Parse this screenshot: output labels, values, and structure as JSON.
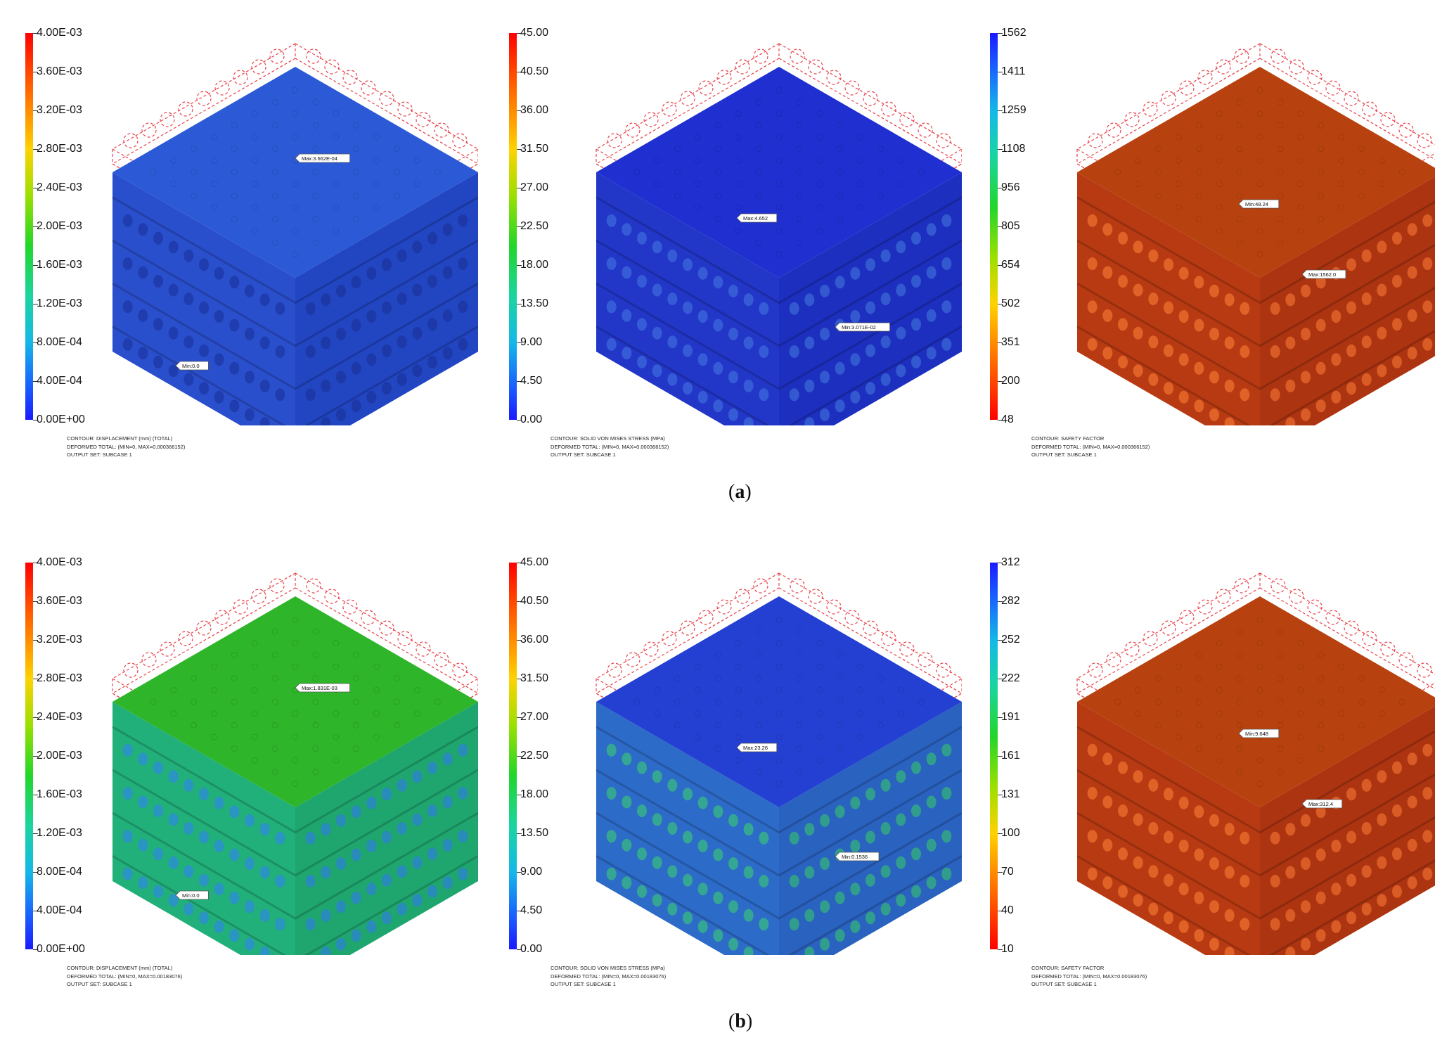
{
  "captions": {
    "a": "a",
    "b": "b"
  },
  "rows": [
    {
      "panels": [
        {
          "kind": "displacement",
          "colormap": "rainbow",
          "ticks": [
            "4.00E-03",
            "3.60E-03",
            "3.20E-03",
            "2.80E-03",
            "2.40E-03",
            "2.00E-03",
            "1.60E-03",
            "1.20E-03",
            "8.00E-04",
            "4.00E-04",
            "0.00E+00"
          ],
          "colors": {
            "top": "#2c5ad6",
            "left": "#2a4fcc",
            "right": "#2245c2",
            "dimples_left": "#1d3aa8",
            "dimples_right": "#1b37a2"
          },
          "max_label": "Max:3.662E-04",
          "min_label": "Min:0.0",
          "footer": [
            "CONTOUR: DISPLACEMENT (mm) (TOTAL)",
            "DEFORMED TOTAL: (MIN=0, MAX=0.000366152)",
            "OUTPUT SET: SUBCASE 1"
          ]
        },
        {
          "kind": "stress",
          "colormap": "rainbow",
          "ticks": [
            "45.00",
            "40.50",
            "36.00",
            "31.50",
            "27.00",
            "22.50",
            "18.00",
            "13.50",
            "9.00",
            "4.50",
            "0.00"
          ],
          "colors": {
            "top": "#1f2fd0",
            "left": "#2236c8",
            "right": "#1d2fbf",
            "dimples_left": "#3a62d8",
            "dimples_right": "#3760d4"
          },
          "max_label": "Max:4.652",
          "min_label": "Min:3.071E-02",
          "footer": [
            "CONTOUR: SOLID VON MISES STRESS (MPa)",
            "DEFORMED TOTAL: (MIN=0, MAX=0.000366152)",
            "OUTPUT SET: SUBCASE 1"
          ]
        },
        {
          "kind": "safety",
          "colormap": "reverse",
          "ticks": [
            "1562",
            "1411",
            "1259",
            "1108",
            "956",
            "805",
            "654",
            "502",
            "351",
            "200",
            "48"
          ],
          "colors": {
            "top": "#b8420f",
            "left": "#b83a12",
            "right": "#ad3410",
            "dimples_left": "#e86a2a",
            "dimples_right": "#e0642a"
          },
          "max_label": "Min:48.24",
          "min_label": "Max:1562.0",
          "footer": [
            "CONTOUR: SAFETY FACTOR",
            "DEFORMED TOTAL: (MIN=0, MAX=0.000366152)",
            "OUTPUT SET: SUBCASE 1"
          ]
        }
      ]
    },
    {
      "panels": [
        {
          "kind": "displacement",
          "colormap": "rainbow",
          "ticks": [
            "4.00E-03",
            "3.60E-03",
            "3.20E-03",
            "2.80E-03",
            "2.40E-03",
            "2.00E-03",
            "1.60E-03",
            "1.20E-03",
            "8.00E-04",
            "4.00E-04",
            "0.00E+00"
          ],
          "colors": {
            "top": "#2fb52a",
            "left": "#22b07a",
            "right": "#1fa66f",
            "dimples_left": "#2c8fd0",
            "dimples_right": "#2a86c8"
          },
          "max_label": "Max:1.831E-03",
          "min_label": "Min:0.0",
          "footer": [
            "CONTOUR: DISPLACEMENT (mm) (TOTAL)",
            "DEFORMED TOTAL: (MIN=0, MAX=0.00183076)",
            "OUTPUT SET: SUBCASE 1"
          ]
        },
        {
          "kind": "stress",
          "colormap": "rainbow",
          "ticks": [
            "45.00",
            "40.50",
            "36.00",
            "31.50",
            "27.00",
            "22.50",
            "18.00",
            "13.50",
            "9.00",
            "4.50",
            "0.00"
          ],
          "colors": {
            "top": "#2440d2",
            "left": "#2d6bc8",
            "right": "#2a62c0",
            "dimples_left": "#36b08a",
            "dimples_right": "#33a884"
          },
          "max_label": "Max:23.26",
          "min_label": "Min:0.1536",
          "footer": [
            "CONTOUR: SOLID VON MISES STRESS (MPa)",
            "DEFORMED TOTAL: (MIN=0, MAX=0.00183076)",
            "OUTPUT SET: SUBCASE 1"
          ]
        },
        {
          "kind": "safety",
          "colormap": "reverse",
          "ticks": [
            "312",
            "282",
            "252",
            "222",
            "191",
            "161",
            "131",
            "100",
            "70",
            "40",
            "10"
          ],
          "colors": {
            "top": "#b8420f",
            "left": "#b83a12",
            "right": "#ad3410",
            "dimples_left": "#e86a2a",
            "dimples_right": "#e0642a"
          },
          "max_label": "Min:9.648",
          "min_label": "Max:312.4",
          "footer": [
            "CONTOUR: SAFETY FACTOR",
            "DEFORMED TOTAL: (MIN=0, MAX=0.00183076)",
            "OUTPUT SET: SUBCASE 1"
          ]
        }
      ]
    }
  ]
}
